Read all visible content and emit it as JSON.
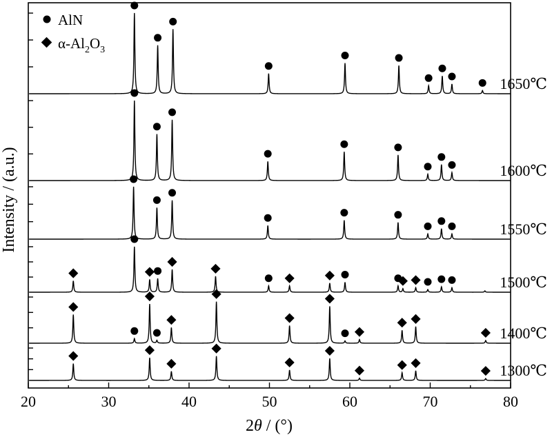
{
  "chart_data": {
    "type": "line",
    "xlabel_prefix": "2",
    "xlabel_var": "θ",
    "xlabel_suffix": " / (°)",
    "ylabel": "Intensity / (a.u.)",
    "xlim": [
      20,
      80
    ],
    "x_ticks": [
      20,
      30,
      40,
      50,
      60,
      70,
      80
    ],
    "legend": {
      "position": "top-left",
      "entries": [
        {
          "marker": "circle",
          "label": "AlN"
        },
        {
          "marker": "diamond",
          "label_prefix": "α-Al",
          "sub1": "2",
          "label_mid": "O",
          "sub2": "3"
        }
      ]
    },
    "series": [
      {
        "name": "1650℃",
        "peaks": [
          {
            "x": 33.2,
            "h": 1.0,
            "marker": "circle"
          },
          {
            "x": 36.1,
            "h": 0.6,
            "marker": "circle"
          },
          {
            "x": 38.0,
            "h": 0.8,
            "marker": "circle"
          },
          {
            "x": 49.9,
            "h": 0.25,
            "marker": "circle"
          },
          {
            "x": 59.4,
            "h": 0.38,
            "marker": "circle"
          },
          {
            "x": 66.1,
            "h": 0.35,
            "marker": "circle"
          },
          {
            "x": 69.8,
            "h": 0.1,
            "marker": "circle"
          },
          {
            "x": 71.5,
            "h": 0.22,
            "marker": "circle"
          },
          {
            "x": 72.7,
            "h": 0.12,
            "marker": "circle"
          },
          {
            "x": 76.5,
            "h": 0.04,
            "marker": "circle"
          }
        ]
      },
      {
        "name": "1600℃",
        "peaks": [
          {
            "x": 33.2,
            "h": 1.0,
            "marker": "circle"
          },
          {
            "x": 36.0,
            "h": 0.58,
            "marker": "circle"
          },
          {
            "x": 37.9,
            "h": 0.76,
            "marker": "circle"
          },
          {
            "x": 49.8,
            "h": 0.24,
            "marker": "circle"
          },
          {
            "x": 59.3,
            "h": 0.36,
            "marker": "circle"
          },
          {
            "x": 66.0,
            "h": 0.32,
            "marker": "circle"
          },
          {
            "x": 69.7,
            "h": 0.08,
            "marker": "circle"
          },
          {
            "x": 71.4,
            "h": 0.2,
            "marker": "circle"
          },
          {
            "x": 72.7,
            "h": 0.1,
            "marker": "circle"
          }
        ]
      },
      {
        "name": "1550℃",
        "peaks": [
          {
            "x": 33.1,
            "h": 1.0,
            "marker": "circle"
          },
          {
            "x": 36.0,
            "h": 0.6,
            "marker": "circle"
          },
          {
            "x": 37.9,
            "h": 0.74,
            "marker": "circle"
          },
          {
            "x": 49.8,
            "h": 0.26,
            "marker": "circle"
          },
          {
            "x": 59.3,
            "h": 0.36,
            "marker": "circle"
          },
          {
            "x": 66.0,
            "h": 0.32,
            "marker": "circle"
          },
          {
            "x": 69.7,
            "h": 0.1,
            "marker": "circle"
          },
          {
            "x": 71.4,
            "h": 0.2,
            "marker": "circle"
          },
          {
            "x": 72.7,
            "h": 0.1,
            "marker": "circle"
          }
        ]
      },
      {
        "name": "1500℃",
        "peaks": [
          {
            "x": 25.6,
            "h": 0.25,
            "marker": "diamond"
          },
          {
            "x": 33.2,
            "h": 1.0,
            "marker": "circle"
          },
          {
            "x": 35.1,
            "h": 0.28,
            "marker": "diamond"
          },
          {
            "x": 36.1,
            "h": 0.3,
            "marker": "circle"
          },
          {
            "x": 37.9,
            "h": 0.5,
            "marker": "diamond"
          },
          {
            "x": 43.3,
            "h": 0.35,
            "marker": "diamond"
          },
          {
            "x": 49.9,
            "h": 0.14,
            "marker": "circle"
          },
          {
            "x": 52.5,
            "h": 0.14,
            "marker": "diamond"
          },
          {
            "x": 57.5,
            "h": 0.2,
            "marker": "diamond"
          },
          {
            "x": 59.4,
            "h": 0.22,
            "marker": "circle"
          },
          {
            "x": 66.0,
            "h": 0.14,
            "marker": "circle"
          },
          {
            "x": 66.6,
            "h": 0.08,
            "marker": "diamond"
          },
          {
            "x": 68.2,
            "h": 0.1,
            "marker": "diamond"
          },
          {
            "x": 69.7,
            "h": 0.06,
            "marker": "circle"
          },
          {
            "x": 71.4,
            "h": 0.12,
            "marker": "circle"
          },
          {
            "x": 72.7,
            "h": 0.1,
            "marker": "circle"
          },
          {
            "x": 76.8,
            "h": 0.03,
            "marker": "none"
          }
        ]
      },
      {
        "name": "1400℃",
        "peaks": [
          {
            "x": 25.6,
            "h": 0.62,
            "marker": "diamond"
          },
          {
            "x": 33.2,
            "h": 0.1,
            "marker": "circle"
          },
          {
            "x": 35.1,
            "h": 0.85,
            "marker": "diamond"
          },
          {
            "x": 36.0,
            "h": 0.06,
            "marker": "circle"
          },
          {
            "x": 37.8,
            "h": 0.34,
            "marker": "diamond"
          },
          {
            "x": 43.4,
            "h": 0.9,
            "marker": "diamond"
          },
          {
            "x": 52.5,
            "h": 0.38,
            "marker": "diamond"
          },
          {
            "x": 57.5,
            "h": 0.8,
            "marker": "diamond"
          },
          {
            "x": 59.4,
            "h": 0.05,
            "marker": "circle"
          },
          {
            "x": 61.2,
            "h": 0.08,
            "marker": "diamond"
          },
          {
            "x": 66.5,
            "h": 0.28,
            "marker": "diamond"
          },
          {
            "x": 68.2,
            "h": 0.36,
            "marker": "diamond"
          },
          {
            "x": 76.9,
            "h": 0.06,
            "marker": "diamond"
          }
        ]
      },
      {
        "name": "1300℃",
        "peaks": [
          {
            "x": 25.6,
            "h": 0.52,
            "marker": "diamond"
          },
          {
            "x": 35.1,
            "h": 0.7,
            "marker": "diamond"
          },
          {
            "x": 37.8,
            "h": 0.28,
            "marker": "diamond"
          },
          {
            "x": 43.4,
            "h": 0.75,
            "marker": "diamond"
          },
          {
            "x": 52.5,
            "h": 0.32,
            "marker": "diamond"
          },
          {
            "x": 57.5,
            "h": 0.68,
            "marker": "diamond"
          },
          {
            "x": 61.2,
            "h": 0.07,
            "marker": "diamond"
          },
          {
            "x": 66.5,
            "h": 0.24,
            "marker": "diamond"
          },
          {
            "x": 68.2,
            "h": 0.3,
            "marker": "diamond"
          },
          {
            "x": 76.9,
            "h": 0.06,
            "marker": "diamond"
          }
        ]
      }
    ]
  }
}
